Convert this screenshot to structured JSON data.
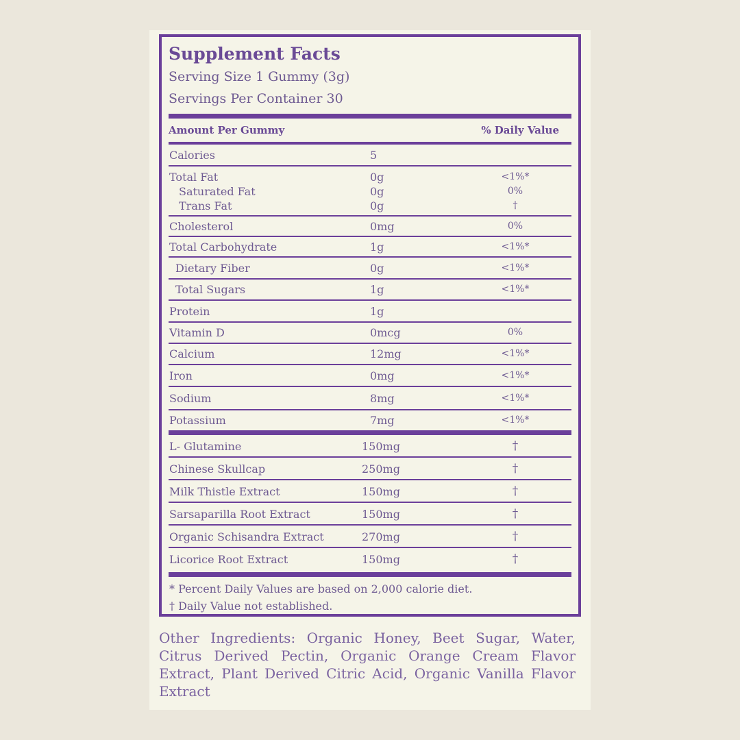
{
  "panel": {
    "title": "Supplement Facts",
    "serving_size": "Serving Size 1 Gummy (3g)",
    "servings_per_container": "Servings Per Container 30",
    "amount_header": "Amount Per Gummy",
    "dv_header": "% Daily Value"
  },
  "nutrients": [
    {
      "lines": [
        {
          "name": "Calories",
          "amount": "5",
          "dv": ""
        }
      ]
    },
    {
      "lines": [
        {
          "name": "Total Fat",
          "amount": "0g",
          "dv": "<1%*"
        },
        {
          "name": "Saturated Fat",
          "amount": "0g",
          "dv": "0%",
          "indent": true
        },
        {
          "name": "Trans Fat",
          "amount": "0g",
          "dv": "†",
          "indent": true
        }
      ]
    },
    {
      "lines": [
        {
          "name": "Cholesterol",
          "amount": "0mg",
          "dv": "0%"
        }
      ]
    },
    {
      "lines": [
        {
          "name": "Total Carbohydrate",
          "amount": "1g",
          "dv": "<1%*"
        }
      ]
    },
    {
      "lines": [
        {
          "name": "Dietary Fiber",
          "amount": "0g",
          "dv": "<1%*",
          "indent2": true
        }
      ]
    },
    {
      "lines": [
        {
          "name": "Total Sugars",
          "amount": "1g",
          "dv": "<1%*",
          "indent2": true
        }
      ]
    },
    {
      "lines": [
        {
          "name": "Protein",
          "amount": "1g",
          "dv": ""
        }
      ]
    },
    {
      "lines": [
        {
          "name": "Vitamin D",
          "amount": "0mcg",
          "dv": "0%"
        }
      ]
    },
    {
      "lines": [
        {
          "name": "Calcium",
          "amount": "12mg",
          "dv": "<1%*"
        }
      ]
    },
    {
      "lines": [
        {
          "name": "Iron",
          "amount": "0mg",
          "dv": "<1%*"
        }
      ]
    },
    {
      "lines": [
        {
          "name": "Sodium",
          "amount": "8mg",
          "dv": "<1%*"
        }
      ]
    },
    {
      "lines": [
        {
          "name": "Potassium",
          "amount": "7mg",
          "dv": "<1%*"
        }
      ]
    }
  ],
  "ingredients": [
    {
      "name": "L- Glutamine",
      "amount": "150mg",
      "dv": "†"
    },
    {
      "name": "Chinese Skullcap",
      "amount": "250mg",
      "dv": "†"
    },
    {
      "name": "Milk Thistle Extract",
      "amount": "150mg",
      "dv": "†"
    },
    {
      "name": "Sarsaparilla Root Extract",
      "amount": "150mg",
      "dv": "†"
    },
    {
      "name": "Organic Schisandra Extract",
      "amount": "270mg",
      "dv": "†"
    },
    {
      "name": "Licorice Root Extract",
      "amount": "150mg",
      "dv": "†"
    }
  ],
  "footnotes": {
    "percent": "* Percent Daily Values are based on 2,000 calorie diet.",
    "dagger": "† Daily Value not established."
  },
  "other_ingredients": "Other Ingredients: Organic Honey, Beet Sugar, Water, Citrus Derived Pectin, Organic Orange Cream Flavor Extract, Plant Derived Citric Acid, Organic Vanilla Flavor Extract",
  "colors": {
    "accent": "#6b3f9a",
    "text": "#6e5a92",
    "label_bg": "#f5f4e8",
    "page_bg": "#ebe7dc"
  }
}
